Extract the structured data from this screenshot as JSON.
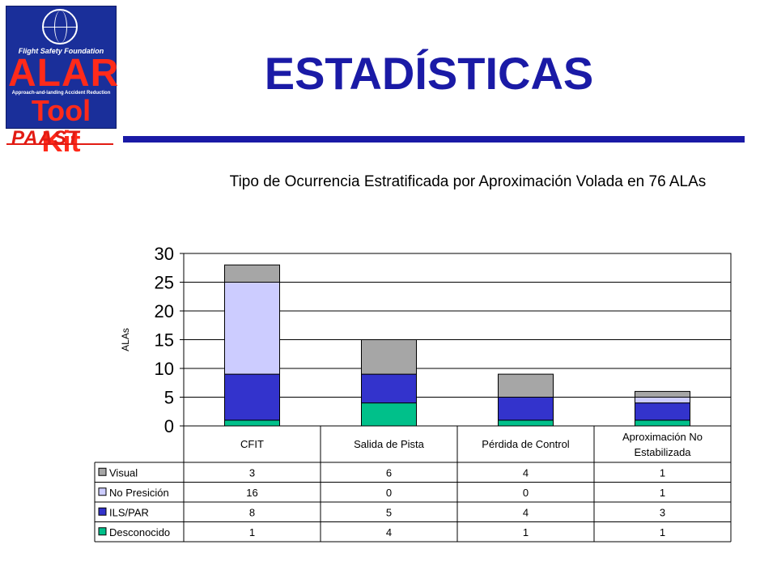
{
  "logo": {
    "org": "Flight Safety Foundation",
    "alar": "ALAR",
    "subtitle": "Approach-and-landing Accident Reduction",
    "toolkit": "Tool Kit",
    "paast": "PAAST"
  },
  "slide": {
    "title": "ESTADÍSTICAS"
  },
  "chart_data": {
    "type": "bar",
    "stacked": true,
    "title": "Tipo de Ocurrencia Estratificada por Aproximación Volada en 76 ALAs",
    "ylabel": "ALAs",
    "ylim": [
      0,
      30
    ],
    "yticks": [
      "0",
      "5",
      "10",
      "15",
      "20",
      "25",
      "30"
    ],
    "categories": [
      "CFIT",
      "Salida de Pista",
      "Pérdida de Control",
      "Aproximación No Estabilizada"
    ],
    "series": [
      {
        "name": "Desconocido",
        "color": "#00c08a",
        "values": [
          1,
          4,
          1,
          1
        ]
      },
      {
        "name": "ILS/PAR",
        "color": "#3333cc",
        "values": [
          8,
          5,
          4,
          3
        ]
      },
      {
        "name": "No Presición",
        "color": "#ccccff",
        "values": [
          16,
          0,
          0,
          1
        ]
      },
      {
        "name": "Visual",
        "color": "#a6a6a6",
        "values": [
          3,
          6,
          4,
          1
        ]
      }
    ],
    "table_row_order": [
      "Visual",
      "No Presición",
      "ILS/PAR",
      "Desconocido"
    ],
    "grid": true,
    "legend": "data-table"
  }
}
